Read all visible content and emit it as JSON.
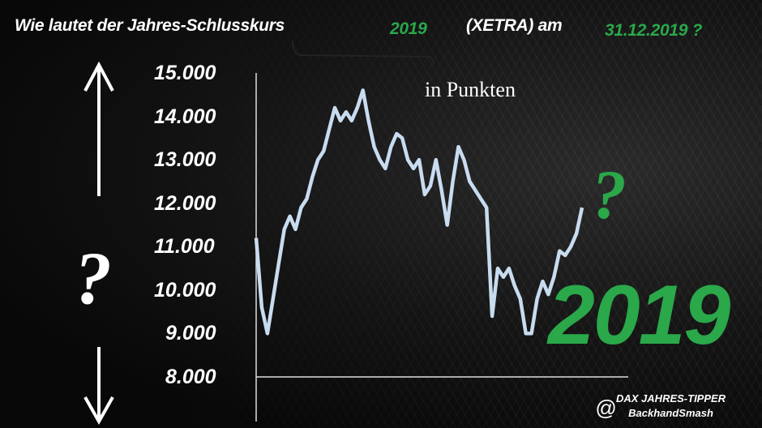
{
  "title": {
    "part1": "Wie lautet der Jahres-Schlusskurs",
    "year": "2019",
    "part2": "(XETRA) am",
    "date": "31.12.2019 ?"
  },
  "unit_label": "in Punkten",
  "question_left": "?",
  "question_right": "?",
  "big_year": "2019",
  "credit": {
    "at": "@",
    "line1": "DAX JAHRES-TIPPER",
    "line2": "BackhandSmash"
  },
  "colors": {
    "line": "#c8dcf0",
    "accent_green": "#2aa84a",
    "text": "#ffffff",
    "background": "#0a0a0a"
  },
  "icons": [
    "arrow-up-icon",
    "arrow-down-icon"
  ],
  "chart_data": {
    "type": "line",
    "title": "",
    "ylabel": "in Punkten",
    "ylim": [
      8000,
      15000
    ],
    "yticks": [
      15000,
      14000,
      13000,
      12000,
      11000,
      10000,
      9000,
      8000
    ],
    "ytick_labels": [
      "15.000",
      "14.000",
      "13.000",
      "12.000",
      "11.000",
      "10.000",
      "9.000",
      "8.000"
    ],
    "grid": false,
    "series": [
      {
        "values": [
          11200,
          9600,
          9000,
          9800,
          10600,
          11400,
          11700,
          11400,
          11900,
          12100,
          12600,
          13000,
          13200,
          13700,
          14200,
          13900,
          14100,
          13900,
          14200,
          14600,
          13900,
          13300,
          13000,
          12800,
          13300,
          13600,
          13500,
          13000,
          12800,
          13000,
          12200,
          12400,
          13000,
          12300,
          11500,
          12500,
          13300,
          13000,
          12500,
          12300,
          12100,
          11900,
          9400,
          10500,
          10300,
          10500,
          10100,
          9800,
          9000,
          9000,
          9800,
          10200,
          9900,
          10300,
          10900,
          10800,
          11000,
          11300,
          11900
        ]
      }
    ]
  }
}
